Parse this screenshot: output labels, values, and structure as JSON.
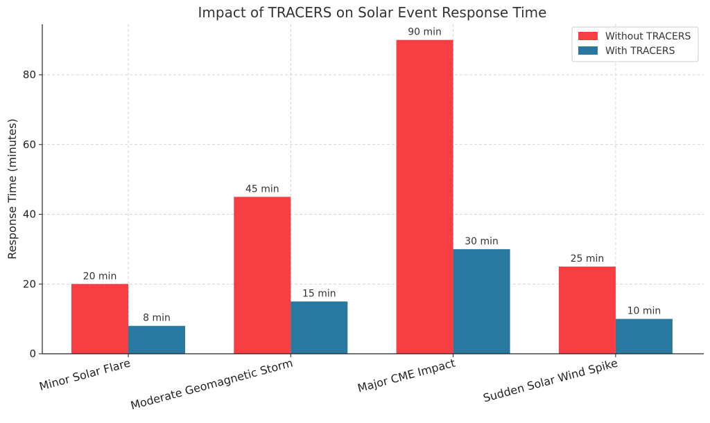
{
  "chart_data": {
    "type": "bar",
    "title": "Impact of TRACERS on Solar Event Response Time",
    "xlabel": "",
    "ylabel": "Response Time (minutes)",
    "ylim": [
      0,
      94.5
    ],
    "yticks": [
      0,
      20,
      40,
      60,
      80
    ],
    "grid": true,
    "legend_position": "top-right",
    "categories": [
      "Minor Solar Flare",
      "Moderate Geomagnetic Storm",
      "Major CME Impact",
      "Sudden Solar Wind Spike"
    ],
    "series": [
      {
        "name": "Without TRACERS",
        "color": "#f73e43",
        "values": [
          20,
          45,
          90,
          25
        ],
        "labels": [
          "20 min",
          "45 min",
          "90 min",
          "25 min"
        ]
      },
      {
        "name": "With TRACERS",
        "color": "#2878a0",
        "values": [
          8,
          15,
          30,
          10
        ],
        "labels": [
          "8 min",
          "15 min",
          "30 min",
          "10 min"
        ]
      }
    ]
  }
}
